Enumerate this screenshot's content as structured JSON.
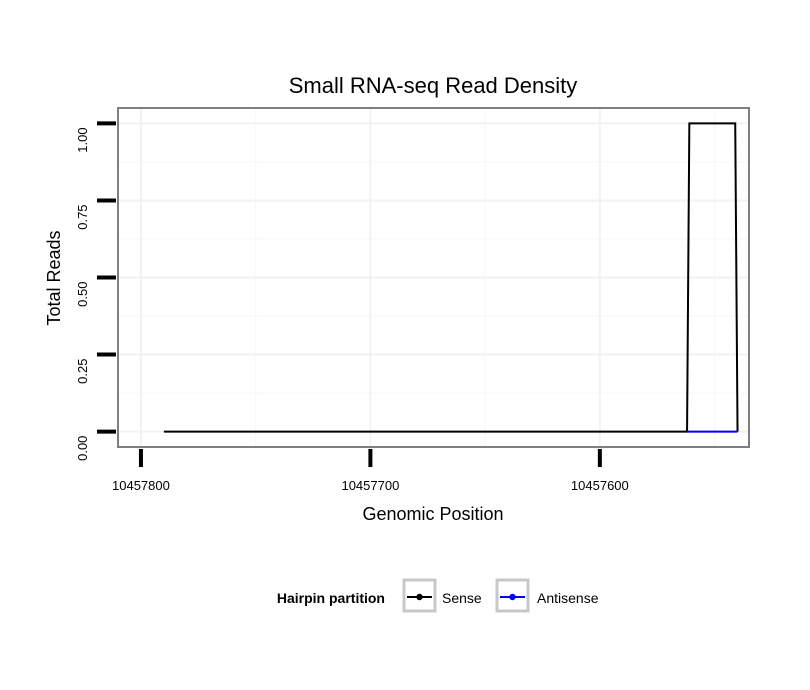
{
  "chart_data": {
    "type": "line",
    "title": "Small RNA-seq Read Density",
    "xlabel": "Genomic Position",
    "ylabel": "Total Reads",
    "x_reversed": true,
    "xlim": [
      10457810,
      10457535
    ],
    "ylim": [
      -0.05,
      1.05
    ],
    "x_ticks": [
      10457800,
      10457700,
      10457600
    ],
    "x_tick_labels": [
      "10457800",
      "10457700",
      "10457600"
    ],
    "y_ticks": [
      0,
      0.25,
      0.5,
      0.75,
      1.0
    ],
    "y_tick_labels": [
      "0.00",
      "0.25",
      "0.50",
      "0.75",
      "1.00"
    ],
    "grid": true,
    "legend": {
      "title": "Hairpin partition",
      "position": "bottom"
    },
    "series": [
      {
        "name": "Sense",
        "color": "#000000",
        "x": [
          10457790,
          10457562,
          10457561,
          10457541,
          10457540
        ],
        "y": [
          0,
          0,
          1,
          1,
          0
        ]
      },
      {
        "name": "Antisense",
        "color": "#0000ff",
        "x": [
          10457562,
          10457540
        ],
        "y": [
          0,
          0
        ]
      }
    ]
  }
}
